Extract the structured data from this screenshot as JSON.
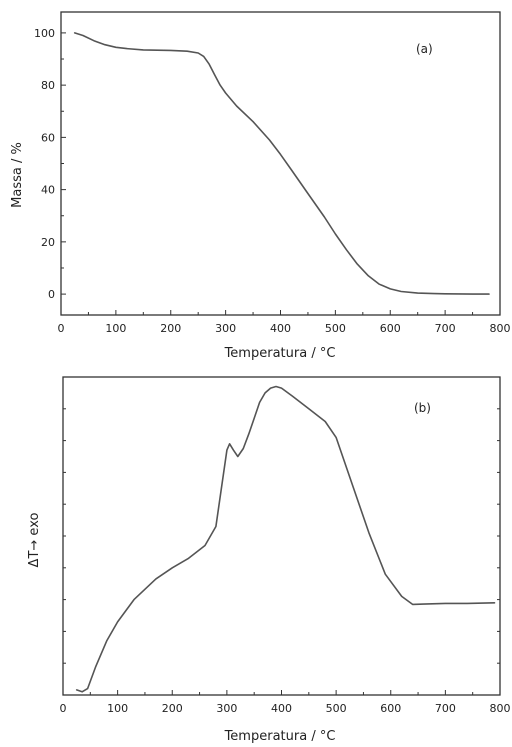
{
  "chart_data": [
    {
      "type": "line",
      "panel_label": "(a)",
      "xlabel": "Temperatura / °C",
      "ylabel": "Massa / %",
      "xlim": [
        0,
        800
      ],
      "ylim": [
        -8,
        108
      ],
      "x_ticks": [
        0,
        100,
        200,
        300,
        400,
        500,
        600,
        700,
        800
      ],
      "x_tick_labels": [
        "0",
        "100",
        "200",
        "300",
        "400",
        "500",
        "600",
        "700",
        "800"
      ],
      "y_ticks": [
        0,
        20,
        40,
        60,
        80,
        100
      ],
      "y_tick_labels": [
        "0",
        "20",
        "40",
        "60",
        "80",
        "100"
      ],
      "series": [
        {
          "x": [
            25,
            40,
            60,
            80,
            100,
            120,
            150,
            200,
            230,
            250,
            260,
            270,
            280,
            290,
            300,
            320,
            350,
            380,
            400,
            420,
            450,
            480,
            500,
            520,
            540,
            560,
            580,
            600,
            620,
            650,
            680,
            700,
            750,
            780
          ],
          "y": [
            100,
            99,
            97,
            95.5,
            94.5,
            94,
            93.5,
            93.3,
            93,
            92.3,
            91,
            88,
            84,
            80,
            77,
            72,
            66,
            59,
            53.5,
            47.5,
            38.5,
            29.5,
            23,
            17,
            11.5,
            7,
            3.8,
            2,
            1,
            0.4,
            0.2,
            0.1,
            0,
            0
          ]
        }
      ]
    },
    {
      "type": "line",
      "panel_label": "(b)",
      "xlabel": "Temperatura / °C",
      "ylabel": "ΔT→ exo",
      "xlim": [
        0,
        800
      ],
      "ylim": [
        0,
        100
      ],
      "x_ticks": [
        0,
        100,
        200,
        300,
        400,
        500,
        600,
        700,
        800
      ],
      "x_tick_labels": [
        "0",
        "100",
        "200",
        "300",
        "400",
        "500",
        "600",
        "700",
        "800"
      ],
      "series": [
        {
          "x": [
            25,
            35,
            45,
            60,
            80,
            100,
            130,
            170,
            200,
            230,
            260,
            280,
            290,
            300,
            305,
            312,
            320,
            330,
            340,
            350,
            360,
            370,
            380,
            390,
            400,
            420,
            450,
            480,
            500,
            530,
            560,
            590,
            620,
            640,
            660,
            700,
            740,
            790
          ],
          "y": [
            1.6,
            1,
            2,
            9,
            17,
            23,
            30,
            36.5,
            40,
            43,
            47,
            53,
            65,
            77,
            79,
            77,
            75,
            77.5,
            82,
            87,
            92,
            95,
            96.5,
            97,
            96.5,
            94,
            90,
            86,
            81,
            66,
            51,
            38,
            31,
            28.5,
            28.6,
            28.8,
            28.8,
            29
          ]
        }
      ]
    }
  ]
}
